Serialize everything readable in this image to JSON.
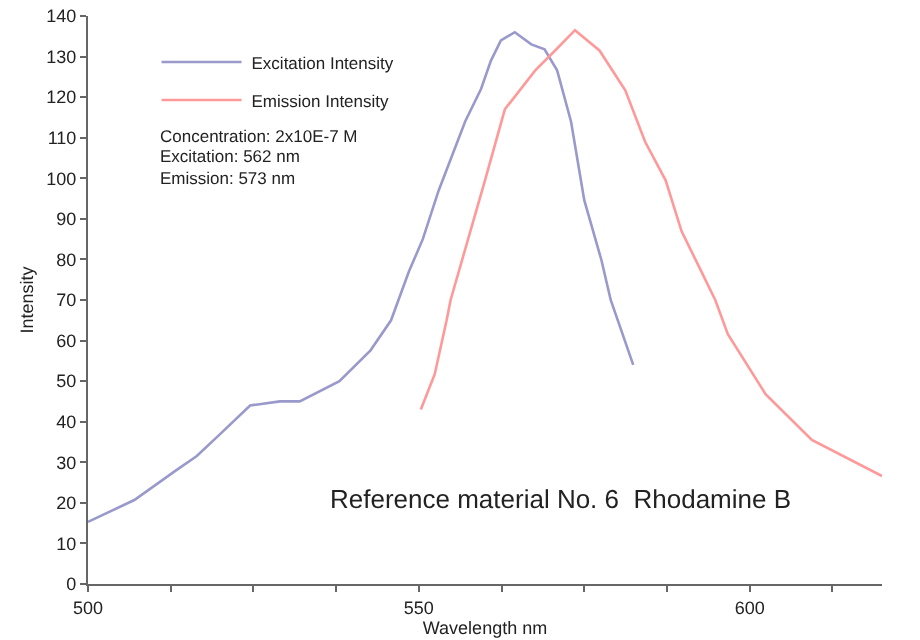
{
  "chart_data": {
    "type": "line",
    "xlabel": "Wavelength nm",
    "ylabel": "Intensity",
    "xlim": [
      500,
      620
    ],
    "xticks": [
      500,
      {
        "value": 512.5,
        "label": null
      },
      {
        "value": 525,
        "label": null
      },
      {
        "value": 537.5,
        "label": null
      },
      550,
      {
        "value": 562.5,
        "label": null
      },
      {
        "value": 575,
        "label": null
      },
      {
        "value": 587.5,
        "label": null
      },
      600,
      {
        "value": 612.5,
        "label": null
      }
    ],
    "ylim": [
      0,
      140
    ],
    "yticks": [
      0,
      10,
      20,
      30,
      40,
      50,
      60,
      70,
      80,
      90,
      100,
      110,
      120,
      130,
      140
    ],
    "series": [
      {
        "name": "Excitation Intensity",
        "color": "#9999cc",
        "x": [
          500,
          507,
          513.3,
          516.4,
          520,
          524.5,
          529,
          532,
          538,
          542.7,
          545.8,
          548.5,
          550.6,
          553,
          557,
          559.4,
          560.9,
          562.4,
          564.5,
          567,
          569,
          570.9,
          573,
          575,
          577.6,
          579,
          582.4
        ],
        "values": [
          15.3,
          20.7,
          28,
          31.5,
          37,
          44,
          45,
          45,
          50,
          57.6,
          65,
          77,
          85,
          97,
          114,
          122,
          129,
          134,
          136,
          133,
          131.8,
          126.6,
          114,
          94.6,
          79.8,
          70,
          54
        ]
      },
      {
        "name": "Emission Intensity",
        "color": "#ff9999",
        "x": [
          550.3,
          552.4,
          554.2,
          554.8,
          560,
          563,
          567.6,
          570.6,
          573.6,
          577.3,
          581.2,
          584.2,
          587.3,
          589.7,
          591.8,
          594.8,
          596.7,
          602.4,
          609.4,
          620
        ],
        "values": [
          43,
          51.7,
          65,
          70,
          99.5,
          117,
          126.6,
          131.5,
          136.5,
          131.5,
          121.7,
          109,
          99.5,
          87,
          80,
          70,
          61.6,
          46.8,
          35.5,
          26.6
        ]
      }
    ],
    "legend": "top left",
    "grid": false,
    "marker": "none",
    "line_style": "solid",
    "annotations": [
      "Concentration: 2x10E-7 M",
      "Excitation: 562 nm",
      "Emission: 573 nm",
      "Reference material No. 6  Rhodamine B"
    ]
  }
}
